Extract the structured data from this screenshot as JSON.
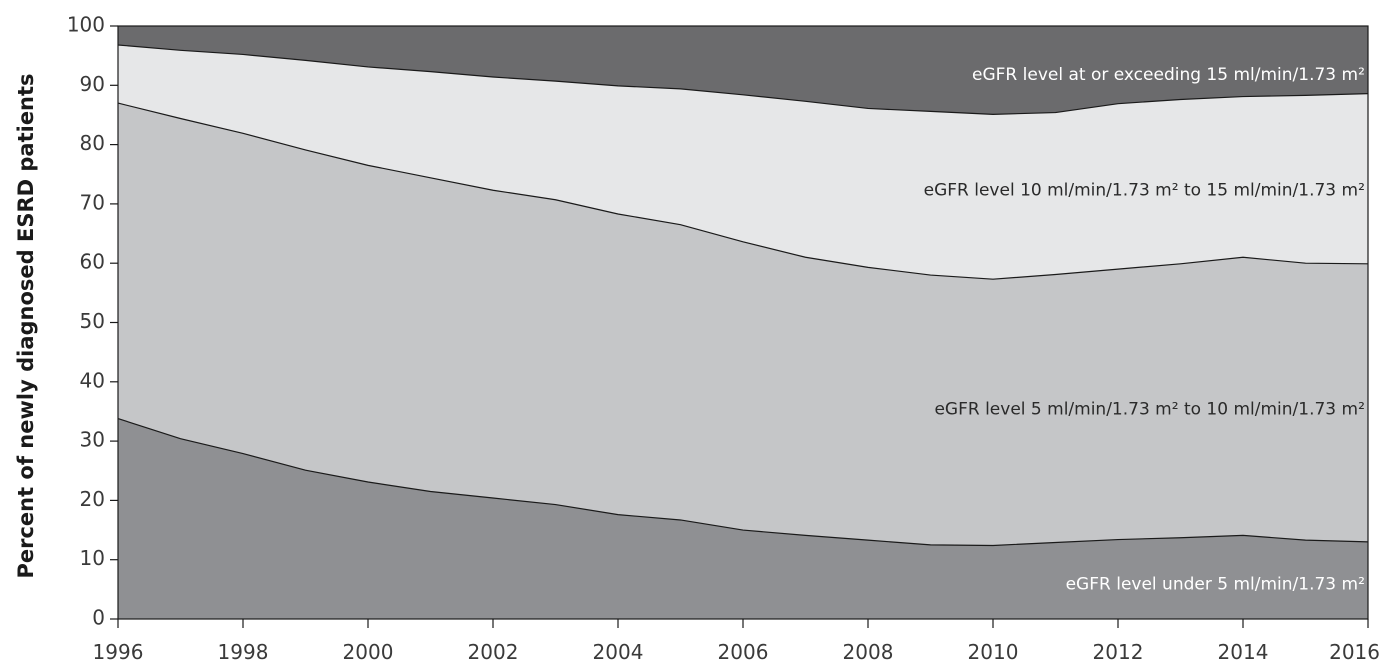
{
  "chart_data": {
    "type": "area",
    "stacked": true,
    "ylabel": "Percent of newly diagnosed ESRD patients",
    "xlabel": "",
    "ylim": [
      0,
      100
    ],
    "yticks": [
      0,
      10,
      20,
      30,
      40,
      50,
      60,
      70,
      80,
      90,
      100
    ],
    "xlim": [
      1996,
      2016
    ],
    "xticks": [
      1996,
      1998,
      2000,
      2002,
      2004,
      2006,
      2008,
      2010,
      2012,
      2014,
      2016
    ],
    "x": [
      1996,
      1997,
      1998,
      1999,
      2000,
      2001,
      2002,
      2003,
      2004,
      2005,
      2006,
      2007,
      2008,
      2009,
      2010,
      2011,
      2012,
      2013,
      2014,
      2015,
      2016
    ],
    "cumulative_boundaries": [
      [
        33.8,
        30.4,
        27.9,
        25.1,
        23.1,
        21.5,
        20.4,
        19.3,
        17.6,
        16.7,
        15.0,
        14.1,
        13.3,
        12.5,
        12.4,
        12.9,
        13.4,
        13.7,
        14.1,
        13.3,
        13.0
      ],
      [
        87.0,
        84.4,
        81.9,
        79.1,
        76.5,
        74.4,
        72.3,
        70.7,
        68.3,
        66.5,
        63.6,
        61.0,
        59.3,
        58.0,
        57.3,
        58.1,
        59.0,
        59.9,
        61.0,
        60.0,
        59.9
      ],
      [
        96.8,
        95.9,
        95.2,
        94.2,
        93.1,
        92.3,
        91.4,
        90.7,
        89.9,
        89.4,
        88.4,
        87.3,
        86.1,
        85.6,
        85.1,
        85.4,
        86.9,
        87.6,
        88.1,
        88.3,
        88.6
      ]
    ],
    "series": [
      {
        "name": "eGFR level under 5 ml/min/1.73 m²",
        "color": "#8f9093",
        "label_color": "#ffffff",
        "label_at": [
          2015.95,
          5.8
        ],
        "values": [
          33.8,
          30.4,
          27.9,
          25.1,
          23.1,
          21.5,
          20.4,
          19.3,
          17.6,
          16.7,
          15.0,
          14.1,
          13.3,
          12.5,
          12.4,
          12.9,
          13.4,
          13.7,
          14.1,
          13.3,
          13.0
        ]
      },
      {
        "name": "eGFR level 5 ml/min/1.73 m² to 10 ml/min/1.73 m²",
        "color": "#c5c6c8",
        "label_color": "#2a2a2a",
        "label_at": [
          2015.95,
          35.3
        ],
        "values": [
          53.2,
          54.0,
          54.0,
          54.0,
          53.4,
          52.9,
          51.9,
          51.4,
          50.7,
          49.8,
          48.6,
          46.9,
          46.0,
          45.5,
          44.9,
          45.2,
          45.6,
          46.2,
          46.9,
          46.7,
          46.9
        ]
      },
      {
        "name": "eGFR level 10 ml/min/1.73 m² to 15 ml/min/1.73 m²",
        "color": "#e6e7e8",
        "label_color": "#2a2a2a",
        "label_at": [
          2015.95,
          72.3
        ],
        "values": [
          9.8,
          11.5,
          13.3,
          15.1,
          16.6,
          17.9,
          19.1,
          20.0,
          21.6,
          22.9,
          24.8,
          26.3,
          26.8,
          27.6,
          27.8,
          27.3,
          27.9,
          27.7,
          27.1,
          28.3,
          28.7
        ]
      },
      {
        "name": "eGFR level at or exceeding 15 ml/min/1.73 m²",
        "color": "#6b6b6d",
        "label_color": "#ffffff",
        "label_at": [
          2015.95,
          91.7
        ],
        "values": [
          3.2,
          4.1,
          4.8,
          5.8,
          6.9,
          7.7,
          8.6,
          9.3,
          10.1,
          10.6,
          11.6,
          12.7,
          13.9,
          14.4,
          14.9,
          14.6,
          13.1,
          12.4,
          11.9,
          11.7,
          11.4
        ]
      }
    ]
  }
}
